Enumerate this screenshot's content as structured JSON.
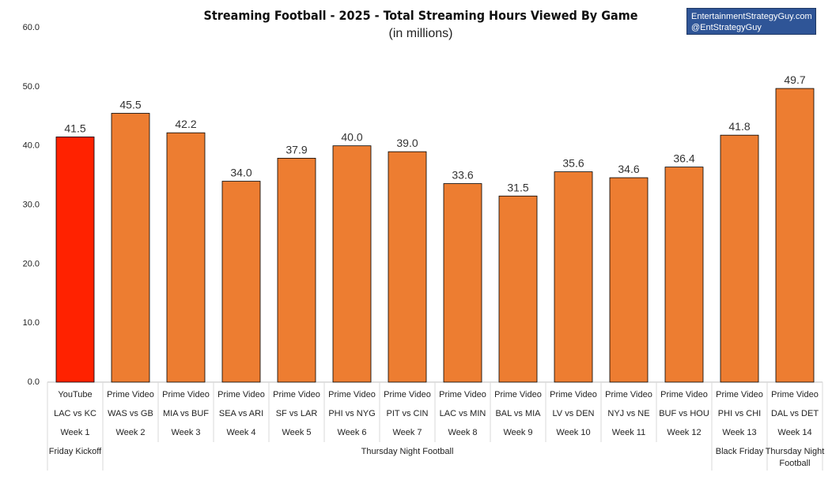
{
  "header": {
    "title": "Streaming Football - 2025 - Total Streaming Hours Viewed By Game",
    "subtitle": "(in millions)"
  },
  "credit": {
    "line1": "EntertainmentStrategyGuy.com",
    "line2": "@EntStrategyGuy"
  },
  "colors": {
    "highlight": "#ff2200",
    "bar": "#ed7d31",
    "credit_bg": "#2f5597"
  },
  "chart_data": {
    "type": "bar",
    "title": "Streaming Football - 2025 - Total Streaming Hours Viewed By Game",
    "subtitle": "(in millions)",
    "xlabel": "",
    "ylabel": "",
    "ylim": [
      0,
      60
    ],
    "yticks": [
      "0.0",
      "10.0",
      "20.0",
      "30.0",
      "40.0",
      "50.0",
      "60.0"
    ],
    "grid": false,
    "legend": "none",
    "categories": [
      {
        "platform": "YouTube",
        "matchup": "LAC vs KC",
        "week": "Week 1"
      },
      {
        "platform": "Prime Video",
        "matchup": "WAS vs GB",
        "week": "Week 2"
      },
      {
        "platform": "Prime Video",
        "matchup": "MIA vs BUF",
        "week": "Week 3"
      },
      {
        "platform": "Prime Video",
        "matchup": "SEA vs ARI",
        "week": "Week 4"
      },
      {
        "platform": "Prime Video",
        "matchup": "SF vs LAR",
        "week": "Week 5"
      },
      {
        "platform": "Prime Video",
        "matchup": "PHI vs NYG",
        "week": "Week 6"
      },
      {
        "platform": "Prime Video",
        "matchup": "PIT vs CIN",
        "week": "Week 7"
      },
      {
        "platform": "Prime Video",
        "matchup": "LAC vs MIN",
        "week": "Week 8"
      },
      {
        "platform": "Prime Video",
        "matchup": "BAL vs MIA",
        "week": "Week 9"
      },
      {
        "platform": "Prime Video",
        "matchup": "LV vs DEN",
        "week": "Week 10"
      },
      {
        "platform": "Prime Video",
        "matchup": "NYJ vs NE",
        "week": "Week 11"
      },
      {
        "platform": "Prime Video",
        "matchup": "BUF vs HOU",
        "week": "Week 12"
      },
      {
        "platform": "Prime Video",
        "matchup": "PHI vs CHI",
        "week": "Week 13"
      },
      {
        "platform": "Prime Video",
        "matchup": "DAL vs DET",
        "week": "Week 14"
      }
    ],
    "values": [
      41.5,
      45.5,
      42.2,
      34.0,
      37.9,
      40.0,
      39.0,
      33.6,
      31.5,
      35.6,
      34.6,
      36.4,
      41.8,
      49.7
    ],
    "value_labels": [
      "41.5",
      "45.5",
      "42.2",
      "34.0",
      "37.9",
      "40.0",
      "39.0",
      "33.6",
      "31.5",
      "35.6",
      "34.6",
      "36.4",
      "41.8",
      "49.7"
    ],
    "highlighted": [
      0
    ],
    "groups": [
      {
        "label": "Friday Kickoff",
        "start": 0,
        "end": 0
      },
      {
        "label": "Thursday Night Football",
        "start": 1,
        "end": 11
      },
      {
        "label": "Black Friday",
        "start": 12,
        "end": 12
      },
      {
        "label": "Thursday Night Football",
        "start": 13,
        "end": 13
      }
    ]
  }
}
